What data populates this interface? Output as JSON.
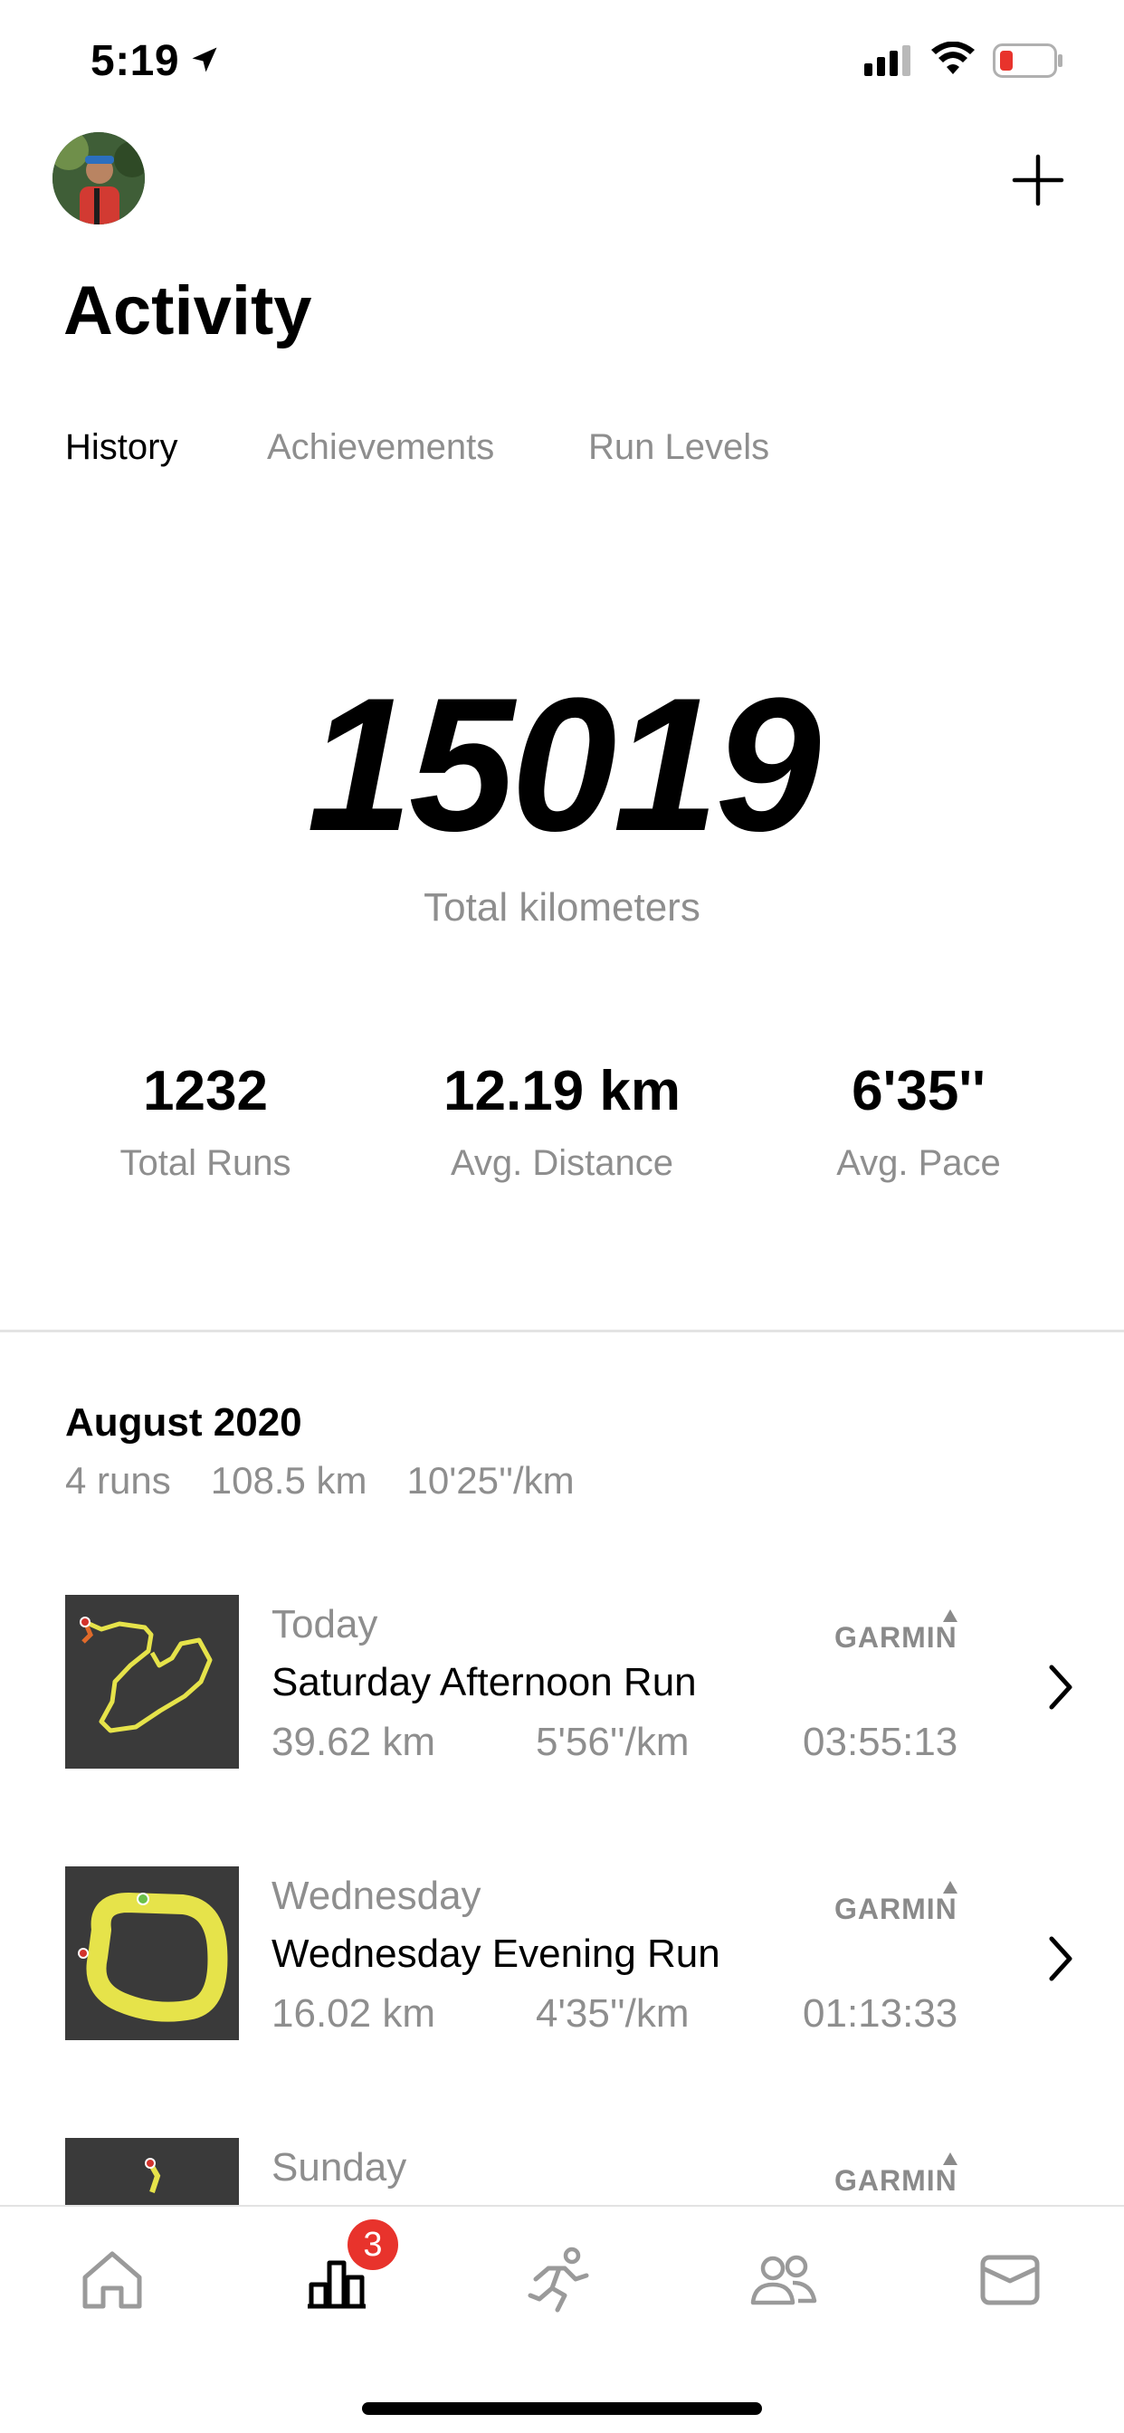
{
  "status_bar": {
    "time": "5:19"
  },
  "header": {
    "title": "Activity"
  },
  "tabs": [
    {
      "label": "History",
      "active": true
    },
    {
      "label": "Achievements",
      "active": false
    },
    {
      "label": "Run Levels",
      "active": false
    }
  ],
  "totals": {
    "kilometers": "15019",
    "kilometers_label": "Total kilometers",
    "stats": [
      {
        "value": "1232",
        "label": "Total Runs"
      },
      {
        "value": "12.19 km",
        "label": "Avg. Distance"
      },
      {
        "value": "6'35''",
        "label": "Avg. Pace"
      }
    ]
  },
  "month": {
    "title": "August 2020",
    "runs": "4 runs",
    "distance": "108.5 km",
    "pace": "10'25''/km"
  },
  "runs": [
    {
      "day": "Today",
      "name": "Saturday Afternoon Run",
      "distance": "39.62 km",
      "pace": "5'56''/km",
      "duration": "03:55:13",
      "source": "GARMIN"
    },
    {
      "day": "Wednesday",
      "name": "Wednesday Evening Run",
      "distance": "16.02 km",
      "pace": "4'35''/km",
      "duration": "01:13:33",
      "source": "GARMIN"
    },
    {
      "day": "Sunday",
      "source": "GARMIN"
    }
  ],
  "tabbar": {
    "items": [
      "home-icon",
      "activity-icon",
      "run-icon",
      "community-icon",
      "inbox-icon"
    ],
    "badge": "3",
    "active": "activity-icon"
  },
  "colors": {
    "badge": "#e8332c",
    "muted_text": "#8e8e8e",
    "route": "#e6e34a",
    "map_bg": "#3a3a3a"
  }
}
